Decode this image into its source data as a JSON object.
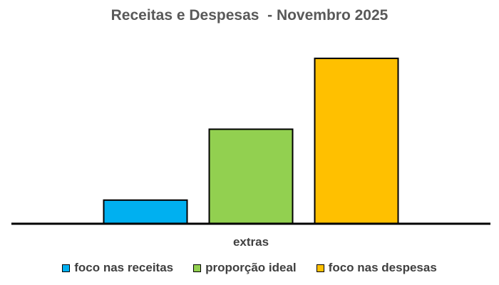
{
  "chart_data": {
    "type": "bar",
    "title": "Receitas e Despesas  - Novembro 2025",
    "categories": [
      "extras"
    ],
    "series": [
      {
        "name": "foco nas receitas",
        "values": [
          1
        ],
        "color": "#00b0f0"
      },
      {
        "name": "proporção ideal",
        "values": [
          4
        ],
        "color": "#92d050"
      },
      {
        "name": "foco nas despesas",
        "values": [
          7
        ],
        "color": "#ffc000"
      }
    ],
    "ylim": [
      0,
      7.6
    ],
    "grid": false,
    "legend_position": "bottom"
  }
}
